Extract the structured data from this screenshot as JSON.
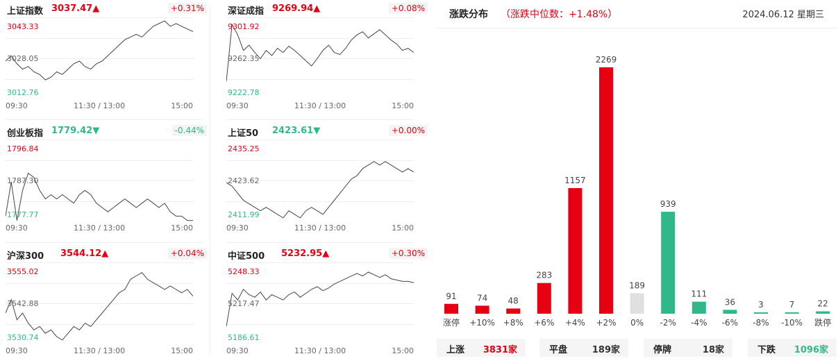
{
  "colors": {
    "up": "#e60012",
    "down": "#2fb98a",
    "flat": "#e0e0e0",
    "grid": "#eeeeee",
    "line": "#444444"
  },
  "indices": [
    {
      "name": "上证指数",
      "price": "3037.47",
      "arrow": "▲",
      "dir": "up",
      "pct": "+0.31%",
      "ymax": "3043.33",
      "ymid": "3028.05",
      "ymin": "3012.76",
      "times": [
        "09:30",
        "11:30 / 13:00",
        "15:00"
      ],
      "series": [
        3027,
        3029,
        3026,
        3024,
        3025,
        3023,
        3022,
        3020,
        3021,
        3023,
        3022,
        3024,
        3026,
        3027,
        3025,
        3024,
        3026,
        3027,
        3029,
        3031,
        3033,
        3035,
        3036,
        3037,
        3036,
        3038,
        3040,
        3041,
        3042,
        3040,
        3041,
        3040,
        3039,
        3038
      ]
    },
    {
      "name": "深证成指",
      "price": "9269.94",
      "arrow": "▲",
      "dir": "up",
      "pct": "+0.08%",
      "ymax": "9301.92",
      "ymid": "9262.35",
      "ymin": "9222.78",
      "times": [
        "09:30",
        "11:30 / 13:00",
        "15:00"
      ],
      "series": [
        9240,
        9295,
        9285,
        9270,
        9275,
        9268,
        9262,
        9270,
        9265,
        9272,
        9268,
        9274,
        9270,
        9265,
        9260,
        9255,
        9262,
        9270,
        9275,
        9268,
        9266,
        9272,
        9280,
        9285,
        9288,
        9282,
        9286,
        9290,
        9285,
        9280,
        9276,
        9270,
        9272,
        9268
      ]
    },
    {
      "name": "创业板指",
      "price": "1779.42",
      "arrow": "▼",
      "dir": "down",
      "pct": "-0.44%",
      "ymax": "1796.84",
      "ymid": "1787.30",
      "ymin": "1777.77",
      "times": [
        "09:30",
        "11:30 / 13:00",
        "15:00"
      ],
      "series": [
        1779,
        1787,
        1778,
        1785,
        1789,
        1788,
        1785,
        1783,
        1784,
        1783,
        1784,
        1783,
        1782,
        1784,
        1785,
        1784,
        1782,
        1781,
        1780,
        1781,
        1782,
        1783,
        1782,
        1781,
        1782,
        1783,
        1782,
        1781,
        1782,
        1780,
        1779,
        1779,
        1778,
        1778
      ]
    },
    {
      "name": "上证50",
      "price": "2423.61",
      "arrow": "▼",
      "dir": "down",
      "pct": "+0.00%",
      "ymax": "2435.25",
      "ymid": "2423.62",
      "ymin": "2411.99",
      "times": [
        "09:30",
        "11:30 / 13:00",
        "15:00"
      ],
      "series": [
        2423,
        2422,
        2420,
        2418,
        2417,
        2416,
        2415,
        2416,
        2415,
        2414,
        2413,
        2415,
        2414,
        2413,
        2415,
        2416,
        2415,
        2414,
        2416,
        2418,
        2420,
        2422,
        2424,
        2425,
        2427,
        2428,
        2429,
        2428,
        2429,
        2428,
        2427,
        2426,
        2427,
        2426
      ]
    },
    {
      "name": "沪深300",
      "price": "3544.12",
      "arrow": "▲",
      "dir": "up",
      "pct": "+0.04%",
      "ymax": "3555.02",
      "ymid": "3542.88",
      "ymin": "3530.74",
      "times": [
        "09:30",
        "11:30 / 13:00",
        "15:00"
      ],
      "series": [
        3540,
        3544,
        3538,
        3540,
        3537,
        3535,
        3536,
        3534,
        3535,
        3533,
        3532,
        3534,
        3536,
        3535,
        3537,
        3536,
        3538,
        3540,
        3542,
        3544,
        3546,
        3547,
        3550,
        3551,
        3552,
        3550,
        3549,
        3548,
        3547,
        3548,
        3547,
        3546,
        3547,
        3545
      ]
    },
    {
      "name": "中证500",
      "price": "5232.95",
      "arrow": "▲",
      "dir": "up",
      "pct": "+0.30%",
      "ymax": "5248.33",
      "ymid": "5217.47",
      "ymin": "5186.61",
      "times": [
        "09:30",
        "11:30 / 13:00",
        "15:00"
      ],
      "series": [
        5200,
        5225,
        5220,
        5228,
        5224,
        5222,
        5226,
        5220,
        5224,
        5222,
        5220,
        5224,
        5226,
        5222,
        5225,
        5228,
        5230,
        5227,
        5229,
        5232,
        5234,
        5236,
        5238,
        5240,
        5238,
        5241,
        5239,
        5237,
        5239,
        5236,
        5235,
        5234,
        5234,
        5233
      ]
    }
  ],
  "distribution": {
    "title": "涨跌分布",
    "subtitle": "（涨跌中位数：+1.48%）",
    "date": "2024.06.12 星期三",
    "summary": [
      {
        "key": "上涨",
        "value": "3831家",
        "dir": "up"
      },
      {
        "key": "平盘",
        "value": "189家",
        "dir": "flat"
      },
      {
        "key": "停牌",
        "value": "18家",
        "dir": "flat"
      },
      {
        "key": "下跌",
        "value": "1096家",
        "dir": "down"
      }
    ]
  },
  "chart_data": {
    "type": "bar",
    "categories": [
      "涨停",
      "+10%",
      "+8%",
      "+6%",
      "+4%",
      "+2%",
      "0%",
      "-2%",
      "-4%",
      "-6%",
      "-8%",
      "-10%",
      "跌停"
    ],
    "values": [
      91,
      74,
      48,
      283,
      1157,
      2269,
      189,
      939,
      111,
      36,
      3,
      7,
      22
    ],
    "dirs": [
      "up",
      "up",
      "up",
      "up",
      "up",
      "up",
      "flat",
      "down",
      "down",
      "down",
      "down",
      "down",
      "down"
    ],
    "title": "涨跌分布",
    "xlabel": "",
    "ylabel": ""
  }
}
